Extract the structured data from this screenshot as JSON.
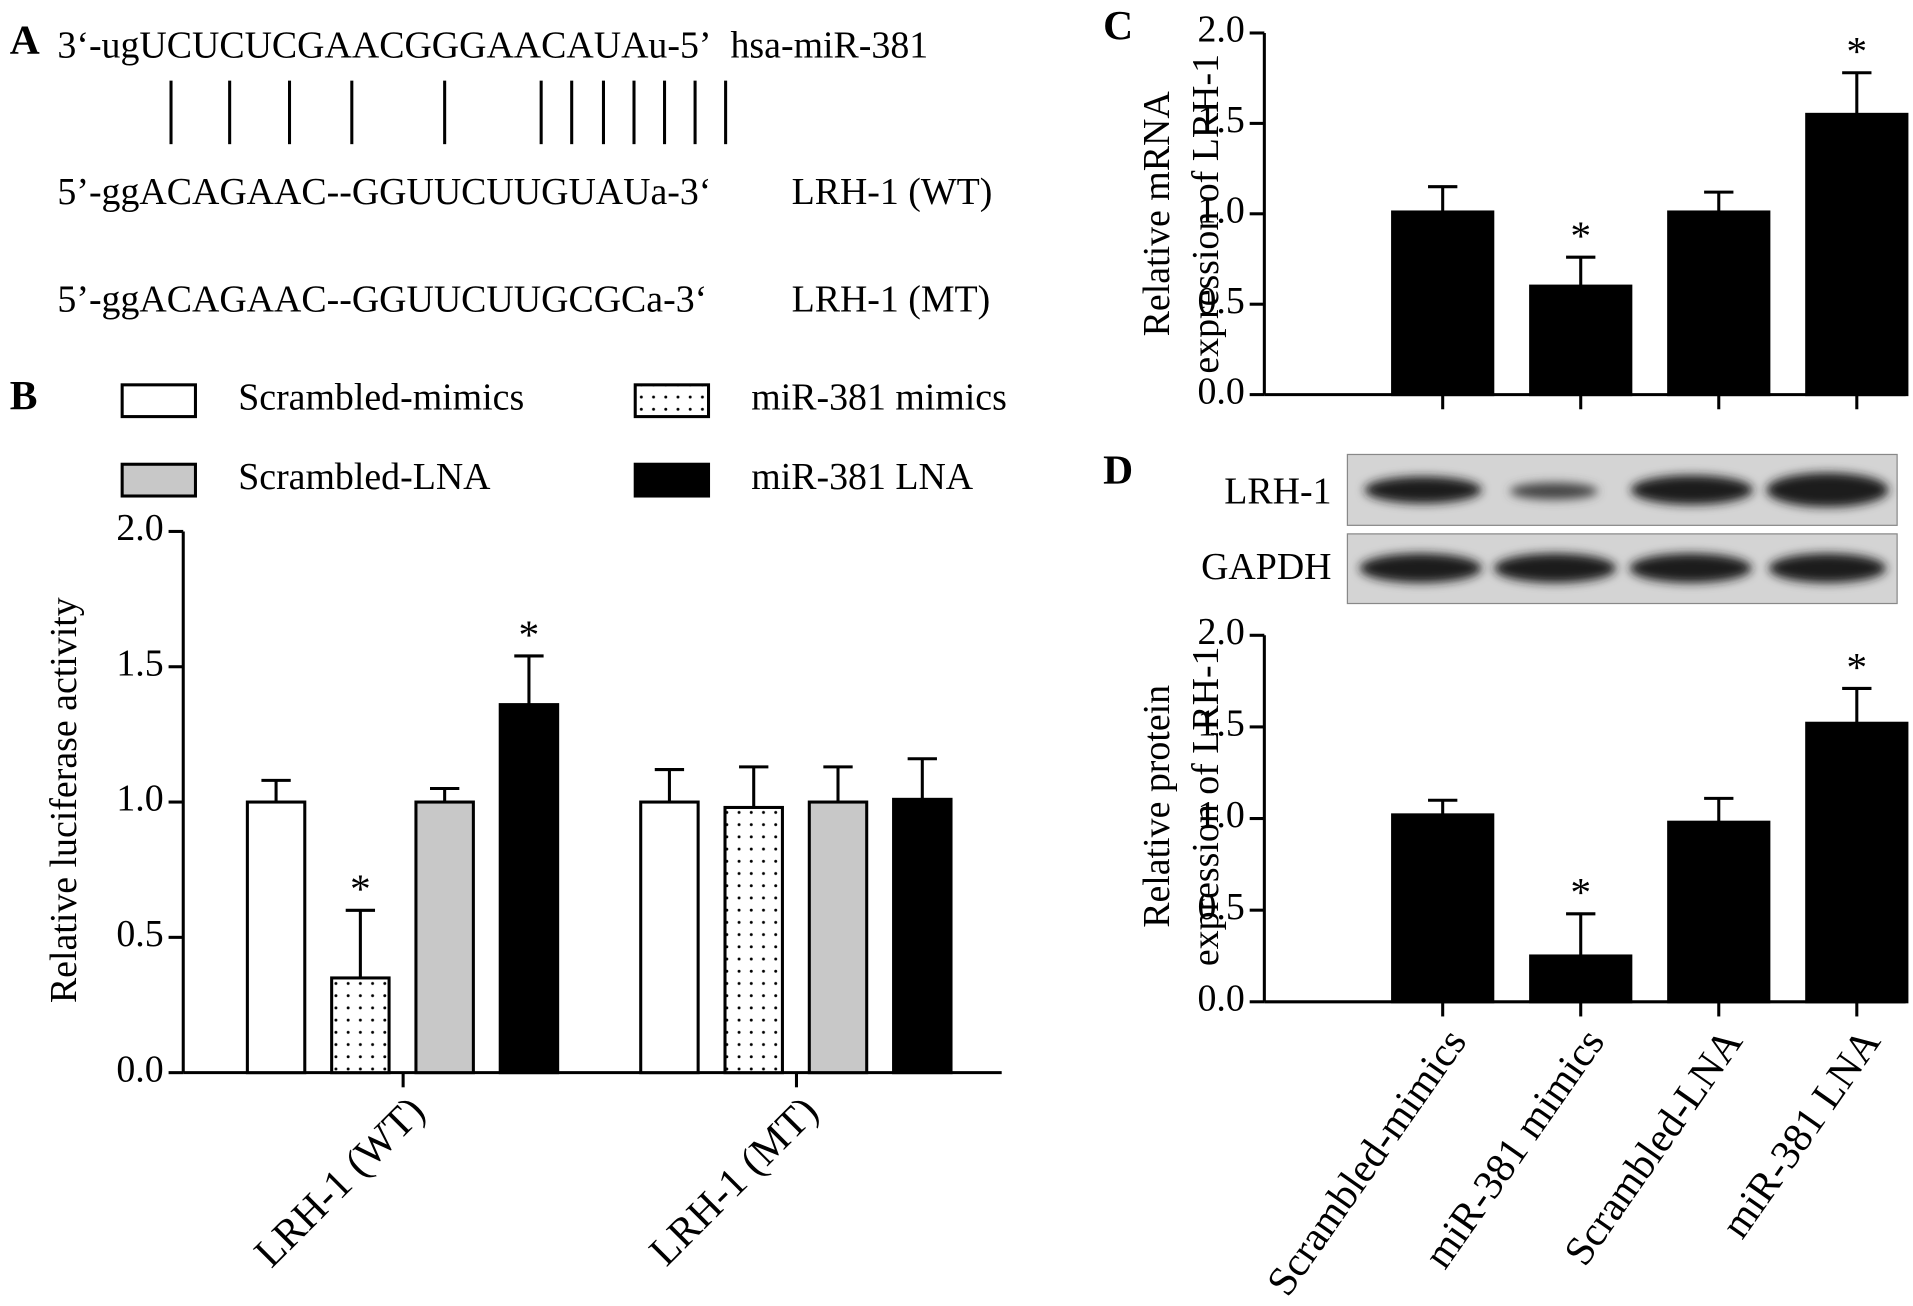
{
  "panel_labels": [
    "A",
    "B",
    "C",
    "D"
  ],
  "alignment": {
    "mirna_seq": "3‘-ugUCUCUCGAACGGGAACAUAu-5’",
    "mirna_name": "hsa-miR-381",
    "wt_seq": "5’-ggACAGAAC--GGUUCUUGUAUa-3‘",
    "wt_name": "LRH-1 (WT)",
    "mt_seq": "5’-ggACAGAAC--GGUUCUUGCGCa-3‘",
    "mt_name": "LRH-1 (MT)"
  },
  "blot": {
    "rows": [
      "LRH-1",
      "GAPDH"
    ]
  },
  "chart_data": [
    {
      "type": "bar",
      "ylabel": [
        "Relative luciferase activity"
      ],
      "categories": [
        "LRH-1 (WT)",
        "LRH-1 (MT)"
      ],
      "series": [
        {
          "name": "Scrambled-mimics",
          "color": "#ffffff",
          "values": [
            1.0,
            1.0
          ],
          "errors": [
            0.08,
            0.12
          ],
          "significance": [
            null,
            null
          ]
        },
        {
          "name": "miR-381 mimics",
          "color": "#ffffff",
          "pattern": "dots",
          "values": [
            0.35,
            0.98
          ],
          "errors": [
            0.25,
            0.15
          ],
          "significance": [
            "*",
            null
          ]
        },
        {
          "name": "Scrambled-LNA",
          "color": "#c8c8c8",
          "values": [
            1.0,
            1.0
          ],
          "errors": [
            0.05,
            0.13
          ],
          "significance": [
            null,
            null
          ]
        },
        {
          "name": "miR-381 LNA",
          "color": "#000000",
          "values": [
            1.36,
            1.01
          ],
          "errors": [
            0.18,
            0.15
          ],
          "significance": [
            "*",
            null
          ]
        }
      ],
      "ylim": [
        0,
        2
      ],
      "yticks": [
        {
          "value": 0,
          "label": "0.0"
        },
        {
          "value": 0.5,
          "label": "0.5"
        },
        {
          "value": 1,
          "label": "1.0"
        },
        {
          "value": 1.5,
          "label": "1.5"
        },
        {
          "value": 2,
          "label": "2.0"
        }
      ]
    },
    {
      "type": "bar",
      "ylabel": [
        "Relative mRNA",
        "expression of LRH-1"
      ],
      "categories": [
        null,
        null,
        null,
        null
      ],
      "color": "#000000",
      "values": [
        1.01,
        0.6,
        1.01,
        1.55
      ],
      "errors": [
        0.14,
        0.16,
        0.11,
        0.23
      ],
      "significance": [
        null,
        "*",
        null,
        "*"
      ],
      "ylim": [
        0,
        2
      ],
      "yticks": [
        {
          "value": 0,
          "label": "0.0"
        },
        {
          "value": 0.5,
          "label": "0.5"
        },
        {
          "value": 1,
          "label": "1.0"
        },
        {
          "value": 1.5,
          "label": "1.5"
        },
        {
          "value": 2,
          "label": "2.0"
        }
      ]
    },
    {
      "type": "bar",
      "ylabel": [
        "Relative protein",
        "expression of LRH-1"
      ],
      "categories": [
        "Scrambled-mimics",
        "miR-381 mimics",
        "Scrambled-LNA",
        "miR-381 LNA"
      ],
      "color": "#000000",
      "values": [
        1.02,
        0.25,
        0.98,
        1.52
      ],
      "errors": [
        0.08,
        0.23,
        0.13,
        0.19
      ],
      "significance": [
        null,
        "*",
        null,
        "*"
      ],
      "ylim": [
        0,
        2
      ],
      "yticks": [
        {
          "value": 0,
          "label": "0.0"
        },
        {
          "value": 0.5,
          "label": "0.5"
        },
        {
          "value": 1,
          "label": "1.0"
        },
        {
          "value": 1.5,
          "label": "1.5"
        },
        {
          "value": 2,
          "label": "2.0"
        }
      ]
    }
  ]
}
